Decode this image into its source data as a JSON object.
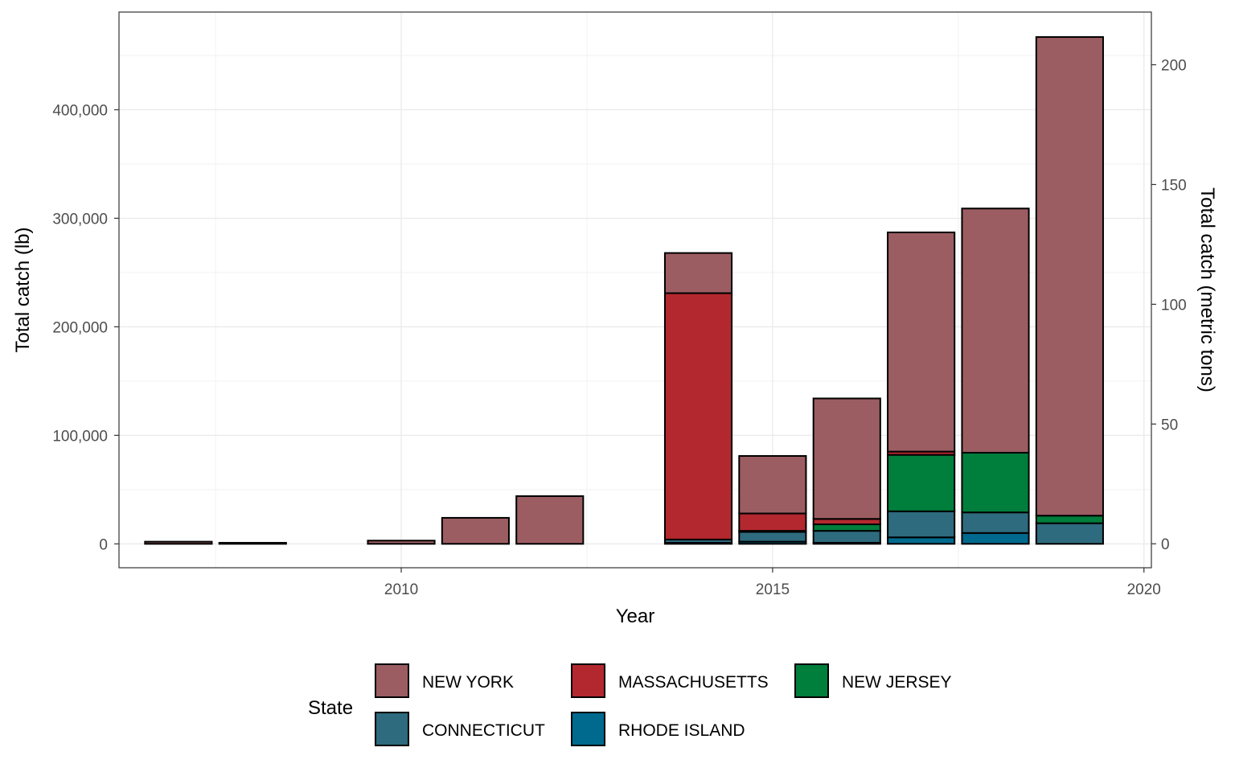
{
  "chart_data": {
    "type": "bar",
    "stacked": true,
    "xlabel": "Year",
    "ylabel": "Total catch (lb)",
    "ylabel_right": "Total catch (metric tons)",
    "xlim": [
      2006.2,
      2020.1
    ],
    "ylim": [
      -22000,
      490000
    ],
    "ylim_right_tons": [
      -10,
      222
    ],
    "x_ticks": [
      2010,
      2015,
      2020
    ],
    "y_ticks": [
      0,
      100000,
      200000,
      300000,
      400000
    ],
    "y_tick_labels": [
      "0",
      "100,000",
      "200,000",
      "300,000",
      "400,000"
    ],
    "y_right_ticks": [
      0,
      50,
      100,
      150,
      200
    ],
    "y_right_tick_labels": [
      "0",
      "50",
      "100",
      "150",
      "200"
    ],
    "grid": true,
    "legend": {
      "title": "State",
      "position": "bottom"
    },
    "years": [
      2007,
      2008,
      2010,
      2011,
      2012,
      2014,
      2015,
      2016,
      2017,
      2018,
      2019
    ],
    "series": [
      {
        "name": "RHODE ISLAND",
        "color": "#006a8e",
        "values": [
          0,
          0,
          0,
          0,
          0,
          1000,
          2000,
          1000,
          6000,
          10000,
          0
        ]
      },
      {
        "name": "CONNECTICUT",
        "color": "#2e6b7e",
        "values": [
          0,
          0,
          0,
          0,
          0,
          3000,
          9000,
          11000,
          24000,
          19000,
          19000
        ]
      },
      {
        "name": "NEW JERSEY",
        "color": "#007e3c",
        "values": [
          0,
          0,
          0,
          0,
          0,
          0,
          1000,
          6000,
          52000,
          55000,
          7000
        ]
      },
      {
        "name": "MASSACHUSETTS",
        "color": "#b3282e",
        "values": [
          0,
          0,
          0,
          0,
          0,
          227000,
          16000,
          5000,
          3000,
          0,
          0
        ]
      },
      {
        "name": "NEW YORK",
        "color": "#9c5d62",
        "values": [
          2000,
          1000,
          3000,
          24000,
          44000,
          37000,
          53000,
          111000,
          202000,
          225000,
          441000
        ]
      }
    ],
    "legend_order": [
      "NEW YORK",
      "MASSACHUSETTS",
      "NEW JERSEY",
      "CONNECTICUT",
      "RHODE ISLAND"
    ]
  }
}
